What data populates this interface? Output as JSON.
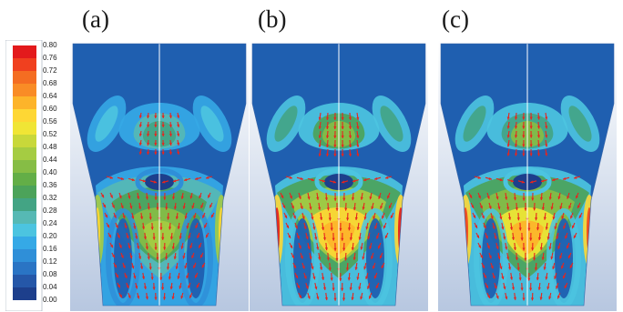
{
  "panels": [
    {
      "label": "(a)",
      "intensity": 0.72
    },
    {
      "label": "(b)",
      "intensity": 1.0
    },
    {
      "label": "(c)",
      "intensity": 0.94
    }
  ],
  "colorbar": {
    "ticks": [
      "0.80",
      "0.76",
      "0.72",
      "0.68",
      "0.64",
      "0.60",
      "0.56",
      "0.52",
      "0.48",
      "0.44",
      "0.40",
      "0.36",
      "0.32",
      "0.28",
      "0.24",
      "0.20",
      "0.16",
      "0.12",
      "0.08",
      "0.04",
      "0.00"
    ],
    "colors": [
      "#e31a1c",
      "#f0401f",
      "#f46d22",
      "#f98c26",
      "#fdb42a",
      "#fed734",
      "#f0e535",
      "#c8d83a",
      "#a5cc42",
      "#86bd45",
      "#63ae47",
      "#4ca35a",
      "#43a484",
      "#56b9b4",
      "#4cc4e0",
      "#35a9e6",
      "#2f8fd8",
      "#2a74c4",
      "#2557a8",
      "#1d3f8c"
    ],
    "min": 0.0,
    "max": 0.8
  },
  "colors": {
    "background_fill": "#1f5fb0",
    "outer_bg_top": "#ffffff",
    "outer_bg_bottom": "#b7c7e0",
    "arrow": "#e8241d",
    "centerline": "#ffffff"
  }
}
